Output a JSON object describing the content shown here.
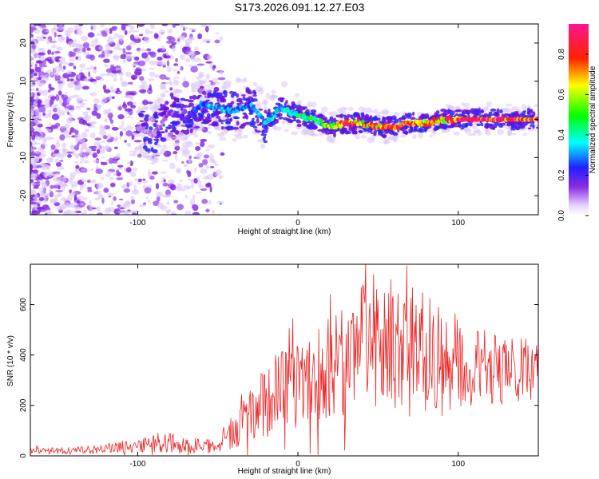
{
  "title": "S173.2026.091.12.27.E03",
  "top_plot": {
    "xlabel": "Height of straight line (km)",
    "ylabel": "Frequency (Hz)",
    "xlim": [
      -167,
      150
    ],
    "ylim": [
      -25,
      25
    ],
    "xticks": [
      -100,
      0,
      100
    ],
    "yticks": [
      20,
      10,
      0,
      -10,
      -20
    ],
    "colorbar": {
      "label": "Normalized spectral amplitude",
      "ticks": [
        "0.0",
        "0.2",
        "0.4",
        "0.6",
        "0.8"
      ]
    }
  },
  "chart_data": [
    {
      "type": "heatmap",
      "title": "S173.2026.091.12.27.E03",
      "xlabel": "Height of straight line (km)",
      "ylabel": "Frequency (Hz)",
      "xlim": [
        -167,
        150
      ],
      "ylim": [
        -25,
        25
      ],
      "colorbar_label": "Normalized spectral amplitude",
      "colorbar_range": [
        0,
        0.95
      ],
      "ridge": {
        "x": [
          -100,
          -90,
          -80,
          -70,
          -60,
          -50,
          -40,
          -30,
          -20,
          -10,
          0,
          10,
          20,
          30,
          40,
          50,
          60,
          70,
          80,
          90,
          100,
          110,
          120,
          130,
          140,
          150
        ],
        "freq": [
          -2,
          -4,
          2,
          0,
          4,
          3,
          2,
          4,
          -1,
          3,
          1,
          0,
          -2,
          -1,
          -1,
          -2,
          -2,
          -1,
          -1,
          0,
          0,
          0,
          0,
          0,
          0,
          0
        ],
        "amplitude": [
          0.1,
          0.1,
          0.15,
          0.2,
          0.3,
          0.35,
          0.3,
          0.35,
          0.35,
          0.4,
          0.45,
          0.5,
          0.6,
          0.9,
          0.7,
          0.8,
          0.85,
          0.75,
          0.7,
          0.75,
          0.95,
          0.95,
          0.95,
          0.95,
          0.95,
          0.95
        ]
      }
    },
    {
      "type": "line",
      "xlabel": "Height of straight line (km)",
      "ylabel": "SNR (10 * v/v)",
      "xlim": [
        -167,
        150
      ],
      "ylim": [
        0,
        760
      ],
      "xticks": [
        -100,
        0,
        100
      ],
      "yticks": [
        0,
        200,
        400,
        600
      ],
      "color": "#ee2222",
      "envelope": {
        "x": [
          -167,
          -140,
          -120,
          -100,
          -80,
          -60,
          -50,
          -45,
          -40,
          -30,
          -20,
          -10,
          0,
          10,
          20,
          30,
          40,
          50,
          60,
          70,
          80,
          90,
          100,
          110,
          120,
          130,
          140,
          150
        ],
        "base": [
          20,
          20,
          30,
          40,
          50,
          40,
          40,
          80,
          90,
          160,
          220,
          260,
          280,
          320,
          360,
          380,
          420,
          440,
          420,
          440,
          420,
          380,
          360,
          350,
          350,
          340,
          340,
          340
        ],
        "spread": [
          12,
          14,
          20,
          30,
          40,
          30,
          40,
          60,
          70,
          120,
          150,
          160,
          170,
          190,
          210,
          220,
          260,
          240,
          250,
          260,
          230,
          200,
          180,
          150,
          150,
          130,
          130,
          120
        ]
      },
      "peaks": [
        {
          "x": 68,
          "y": 755
        },
        {
          "x": 47,
          "y": 720
        },
        {
          "x": 58,
          "y": 700
        },
        {
          "x": 20,
          "y": 640
        },
        {
          "x": -42,
          "y": 150
        }
      ]
    }
  ]
}
